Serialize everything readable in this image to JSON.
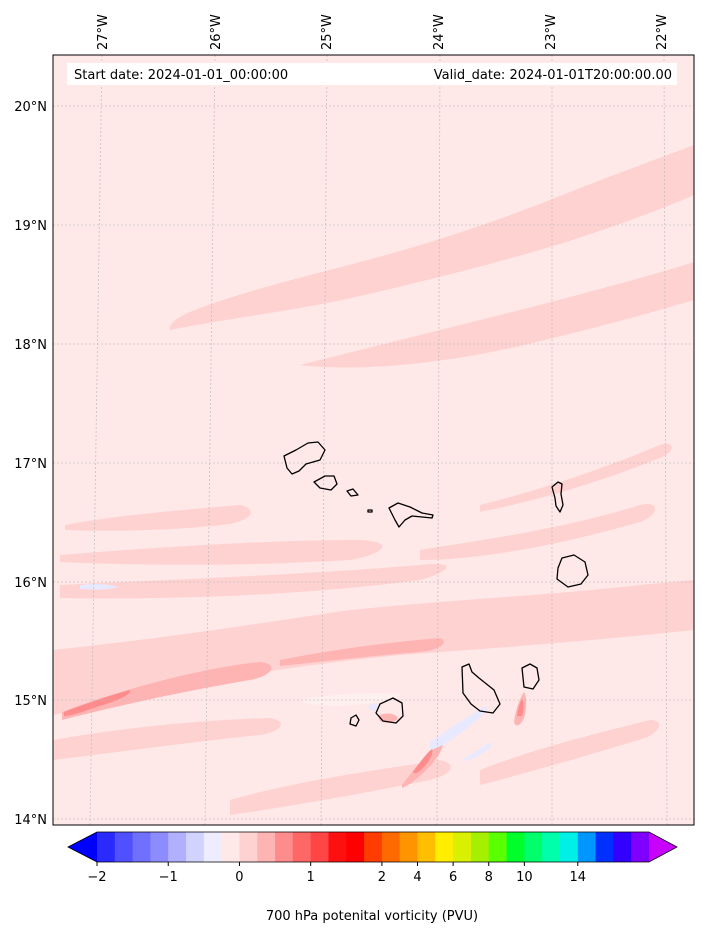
{
  "header": {
    "start_date": "Start date: 2024-01-01_00:00:00",
    "valid_date": "Valid_date: 2024-01-01T20:00:00.00"
  },
  "map": {
    "lon_labels": [
      "27°W",
      "26°W",
      "25°W",
      "24°W",
      "23°W",
      "22°W"
    ],
    "lat_labels": [
      "20°N",
      "19°N",
      "18°N",
      "17°N",
      "16°N",
      "15°N",
      "14°N"
    ],
    "field_colors": {
      "background": "#ffe8e8",
      "low": "#ffd2d2",
      "mid": "#ffb4b4",
      "high": "#ff8c8c",
      "peak": "#ff5050",
      "negative": "#e8e8ff",
      "coast": "#000000"
    }
  },
  "colorbar": {
    "label": "700 hPa potenital vorticity (PVU)",
    "ticks": [
      "−2",
      "−1",
      "0",
      "1",
      "2",
      "4",
      "6",
      "8",
      "10",
      "14"
    ],
    "colors": [
      "#0000ff",
      "#2a2aff",
      "#5050ff",
      "#7070ff",
      "#8c8cff",
      "#b0b0ff",
      "#d2d2ff",
      "#ededff",
      "#ffe8e8",
      "#ffd2d2",
      "#ffb4b4",
      "#ff8c8c",
      "#ff6666",
      "#ff4545",
      "#ff1010",
      "#ff0000",
      "#ff3d00",
      "#ff6a00",
      "#ff9400",
      "#ffbf00",
      "#ffee00",
      "#d9f000",
      "#a4f000",
      "#5aff00",
      "#00ff2a",
      "#00ff6a",
      "#00ffaa",
      "#00f0e8",
      "#0096ff",
      "#0030ff",
      "#3300ff",
      "#8000ff",
      "#c800ff"
    ]
  }
}
